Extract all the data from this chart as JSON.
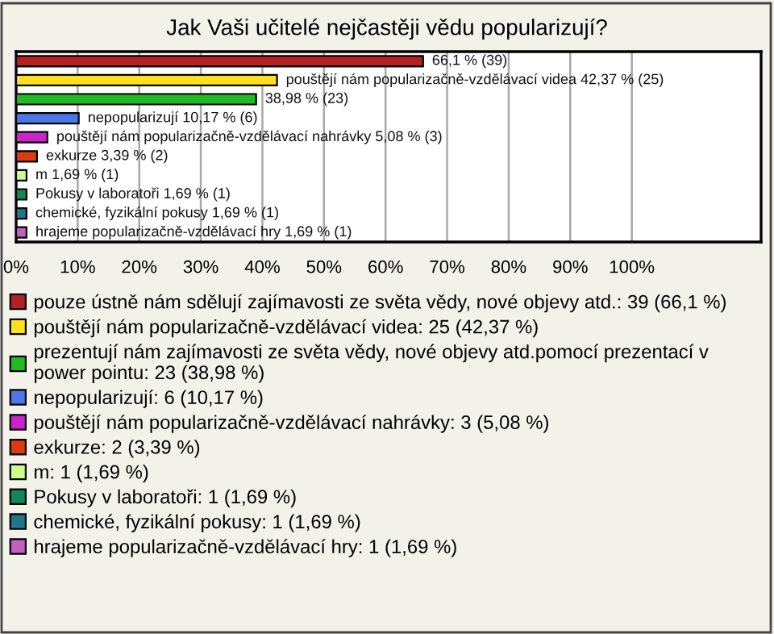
{
  "chart_data": {
    "type": "bar",
    "orientation": "horizontal",
    "title": "Jak Vaši učitelé nejčastěji vědu popularizují?",
    "categories": [
      null,
      null,
      null,
      null,
      null,
      null,
      null,
      null,
      null,
      null
    ],
    "series": [
      {
        "name": "pouze ústně nám sdělují zajímavosti ze světa vědy, nové objevy atd.: 39 (66,1 %)",
        "color": "#b52020",
        "values": [
          66.1,
          null,
          null,
          null,
          null,
          null,
          null,
          null,
          null,
          null
        ],
        "value_labels": [
          "66,1 % (39)",
          null,
          null,
          null,
          null,
          null,
          null,
          null,
          null,
          null
        ]
      },
      {
        "name": "pouštějí nám popularizačně-vzdělávací videa: 25 (42,37 %)",
        "color": "#ffe020",
        "values": [
          null,
          42.37,
          null,
          null,
          null,
          null,
          null,
          null,
          null,
          null
        ],
        "value_labels": [
          null,
          "pouštějí nám popularizačně-vzdělávací videa 42,37 % (25)",
          null,
          null,
          null,
          null,
          null,
          null,
          null,
          null
        ]
      },
      {
        "name": "prezentují nám zajímavosti ze světa vědy, nové objevy atd.pomocí prezentací v power pointu: 23 (38,98 %)",
        "color": "#22bb22",
        "values": [
          null,
          null,
          38.98,
          null,
          null,
          null,
          null,
          null,
          null,
          null
        ],
        "value_labels": [
          null,
          null,
          "38,98 % (23)",
          null,
          null,
          null,
          null,
          null,
          null,
          null
        ]
      },
      {
        "name": "nepopularizují: 6 (10,17 %)",
        "color": "#4a78e8",
        "values": [
          null,
          null,
          null,
          10.17,
          null,
          null,
          null,
          null,
          null,
          null
        ],
        "value_labels": [
          null,
          null,
          null,
          "nepopularizují 10,17 % (6)",
          null,
          null,
          null,
          null,
          null,
          null
        ]
      },
      {
        "name": "pouštějí nám popularizačně-vzdělávací nahrávky: 3 (5,08 %)",
        "color": "#cc22cc",
        "values": [
          null,
          null,
          null,
          null,
          5.08,
          null,
          null,
          null,
          null,
          null
        ],
        "value_labels": [
          null,
          null,
          null,
          null,
          "pouštějí nám popularizačně-vzdělávací nahrávky 5,08 % (3)",
          null,
          null,
          null,
          null,
          null
        ]
      },
      {
        "name": "exkurze: 2 (3,39 %)",
        "color": "#dd3a10",
        "values": [
          null,
          null,
          null,
          null,
          null,
          3.39,
          null,
          null,
          null,
          null
        ],
        "value_labels": [
          null,
          null,
          null,
          null,
          null,
          "exkurze 3,39 % (2)",
          null,
          null,
          null,
          null
        ]
      },
      {
        "name": "m: 1 (1,69 %)",
        "color": "#ccff88",
        "values": [
          null,
          null,
          null,
          null,
          null,
          null,
          1.69,
          null,
          null,
          null
        ],
        "value_labels": [
          null,
          null,
          null,
          null,
          null,
          null,
          "m 1,69 % (1)",
          null,
          null,
          null
        ]
      },
      {
        "name": "Pokusy v laboratoři: 1 (1,69 %)",
        "color": "#11885a",
        "values": [
          null,
          null,
          null,
          null,
          null,
          null,
          null,
          1.69,
          null,
          null
        ],
        "value_labels": [
          null,
          null,
          null,
          null,
          null,
          null,
          null,
          "Pokusy v laboratoři 1,69 % (1)",
          null,
          null
        ]
      },
      {
        "name": "chemické, fyzikální pokusy: 1 (1,69 %)",
        "color": "#22768a",
        "values": [
          null,
          null,
          null,
          null,
          null,
          null,
          null,
          null,
          1.69,
          null
        ],
        "value_labels": [
          null,
          null,
          null,
          null,
          null,
          null,
          null,
          null,
          "chemické, fyzikální pokusy 1,69 % (1)",
          null
        ]
      },
      {
        "name": "hrajeme popularizačně-vzdělávací hry: 1 (1,69 %)",
        "color": "#c060c0",
        "values": [
          null,
          null,
          null,
          null,
          null,
          null,
          null,
          null,
          null,
          1.69
        ],
        "value_labels": [
          null,
          null,
          null,
          null,
          null,
          null,
          null,
          null,
          null,
          "hrajeme popularizačně-vzdělávací hry 1,69 % (1)"
        ]
      }
    ],
    "xlim": [
      0,
      121
    ],
    "xticks": [
      {
        "value": 0,
        "label": "0%"
      },
      {
        "value": 10,
        "label": "10%"
      },
      {
        "value": 20,
        "label": "20%"
      },
      {
        "value": 30,
        "label": "30%"
      },
      {
        "value": 40,
        "label": "40%"
      },
      {
        "value": 50,
        "label": "50%"
      },
      {
        "value": 60,
        "label": "60%"
      },
      {
        "value": 70,
        "label": "70%"
      },
      {
        "value": 80,
        "label": "80%"
      },
      {
        "value": 90,
        "label": "90%"
      },
      {
        "value": 100,
        "label": "100%"
      }
    ],
    "grid": "x",
    "legend": "bottom",
    "tick_labels": "x"
  }
}
